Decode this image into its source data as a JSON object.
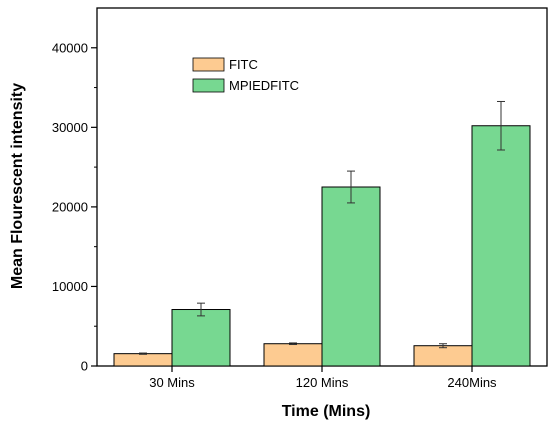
{
  "chart_data": {
    "type": "bar",
    "xlabel": "Time (Mins)",
    "ylabel": "Mean Flourescent intensity",
    "categories": [
      "30 Mins",
      "120 Mins",
      "240Mins"
    ],
    "ylim": [
      0,
      45000
    ],
    "yticks": [
      0,
      10000,
      20000,
      30000,
      40000
    ],
    "series": [
      {
        "name": "FITC",
        "color": "#FDCB91",
        "values": [
          1550,
          2800,
          2550
        ],
        "errors": [
          80,
          100,
          250
        ]
      },
      {
        "name": "MPIEDFITC",
        "color": "#77D891",
        "values": [
          7100,
          22500,
          30200
        ],
        "errors": [
          800,
          2000,
          3050
        ]
      }
    ],
    "legend_position": "top-left",
    "grid": false
  }
}
